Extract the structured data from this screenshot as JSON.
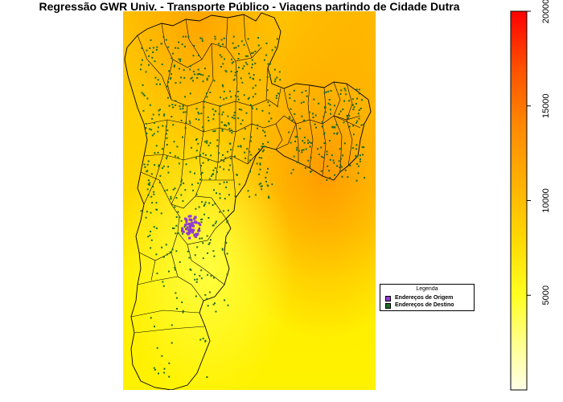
{
  "title": "Regressão GWR Univ. - Transporte Público - Viagens partindo de Cidade Dutra",
  "legend": {
    "title": "Legenda",
    "items": [
      {
        "label": "Endereços de Origem",
        "color": "#8e3bd0"
      },
      {
        "label": "Endereços de Destino",
        "color": "#1d6b2a"
      }
    ]
  },
  "colorbar": {
    "range": [
      0,
      20000
    ],
    "ticks": [
      5000,
      10000,
      15000,
      20000
    ],
    "tick_labels": [
      "5000",
      "10000",
      "15000",
      "20000"
    ],
    "colors": [
      "#ffffe6",
      "#ffff80",
      "#ffee00",
      "#ffcc00",
      "#ffaa00",
      "#ff8800",
      "#ff5500",
      "#ff0000"
    ]
  },
  "map": {
    "background_colors": {
      "low": "#ffff33",
      "mid": "#ffcc00",
      "high": "#ffa000"
    },
    "origin_color": "#8e3bd0",
    "destination_color": "#1d6b2a",
    "boundary_color": "#000000"
  }
}
